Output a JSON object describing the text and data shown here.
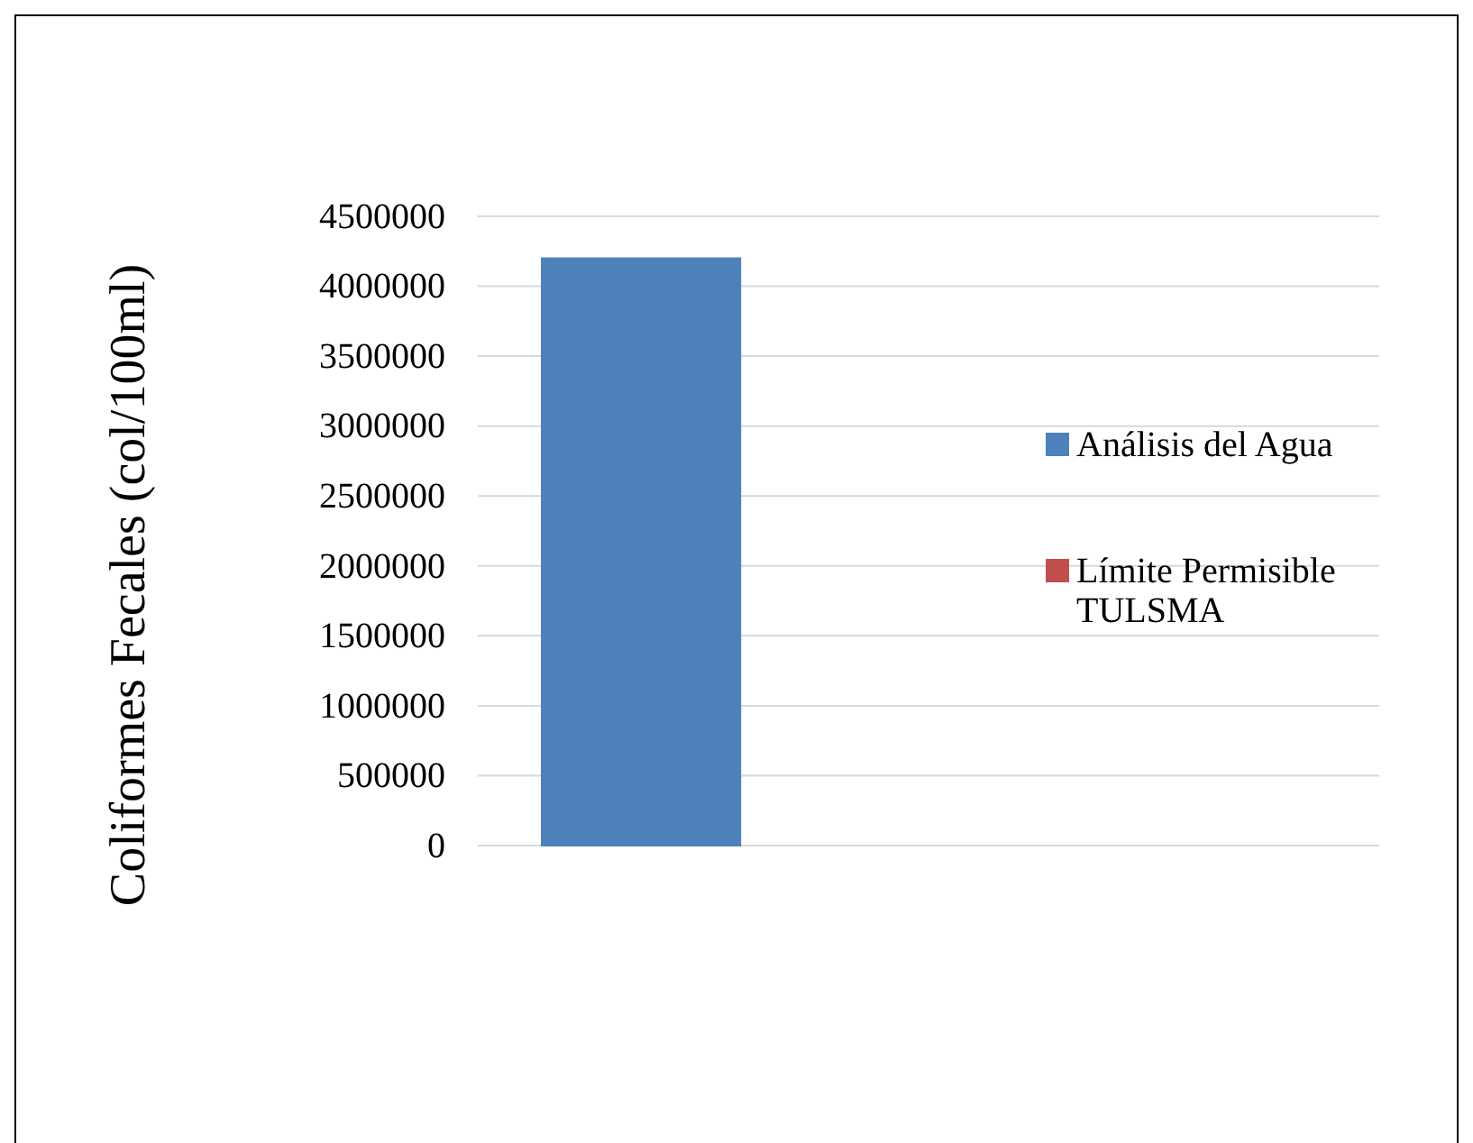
{
  "chart_data": {
    "type": "bar",
    "ylabel": "Coliformes Fecales (col/100ml)",
    "categories": [
      null
    ],
    "series": [
      {
        "name": "Análisis del Agua",
        "color": "#4f81bd",
        "values": [
          4200000
        ]
      },
      {
        "name": "Límite Permisible TULSMA",
        "color": "#c0504d",
        "values": [
          0
        ]
      }
    ],
    "ylim": [
      0,
      4500000
    ],
    "yticks": [
      0,
      500000,
      1000000,
      1500000,
      2000000,
      2500000,
      3000000,
      3500000,
      4000000,
      4500000
    ],
    "grid": "y",
    "legend": "right"
  }
}
